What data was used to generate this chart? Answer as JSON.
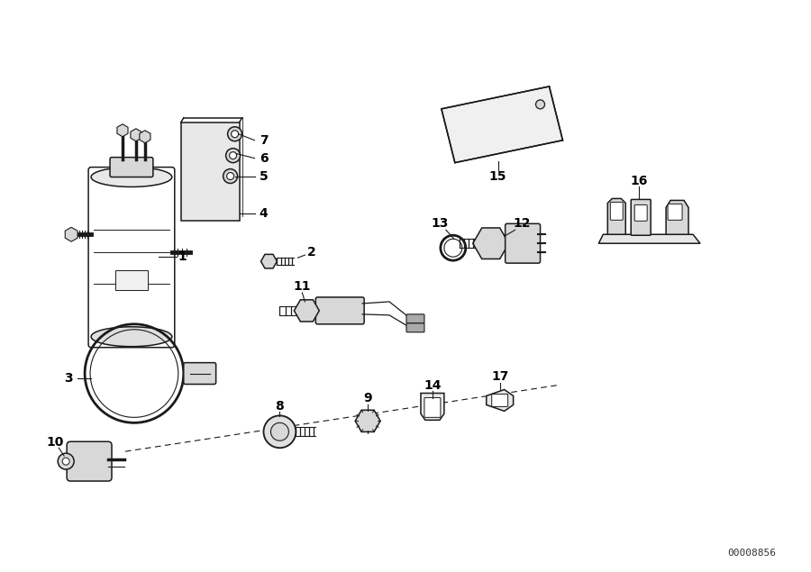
{
  "bg_color": "#ffffff",
  "line_color": "#1a1a1a",
  "label_color": "#000000",
  "diagram_id": "00008856",
  "figsize": [
    9.0,
    6.35
  ],
  "dpi": 100,
  "lw": 1.1
}
